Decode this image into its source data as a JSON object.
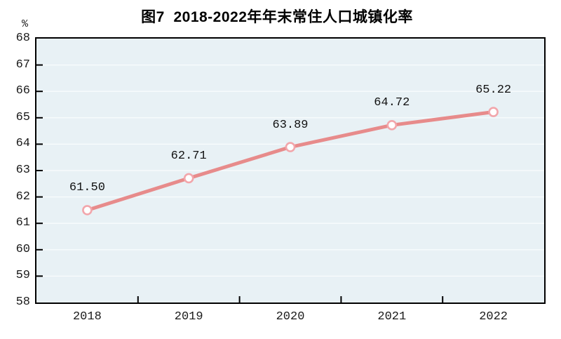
{
  "figure": {
    "title": "图7  2018-2022年年末常住人口城镇化率",
    "unit_label": "%"
  },
  "chart_data": {
    "type": "line",
    "title": "图7  2018-2022年年末常住人口城镇化率",
    "xlabel": "",
    "ylabel": "%",
    "categories": [
      "2018",
      "2019",
      "2020",
      "2021",
      "2022"
    ],
    "series": [
      {
        "values": [
          61.5,
          62.71,
          63.89,
          64.72,
          65.22
        ],
        "labels": [
          "61.50",
          "62.71",
          "63.89",
          "64.72",
          "65.22"
        ]
      }
    ],
    "ylim": [
      58,
      68
    ],
    "y_tick_step": 1,
    "y_ticks": [
      "68",
      "67",
      "66",
      "65",
      "64",
      "63",
      "62",
      "61",
      "60",
      "59",
      "58"
    ],
    "grid": "horizontal",
    "legend_position": "none",
    "colors": {
      "line": "#e78b8b",
      "marker_ring": "#f2a6ab",
      "marker_fill": "#ffffff",
      "plot_bg": "#e8f1f5",
      "gridline": "#f9fcfd",
      "axis": "#000000",
      "text": "#111111",
      "page_bg": "#ffffff"
    }
  }
}
